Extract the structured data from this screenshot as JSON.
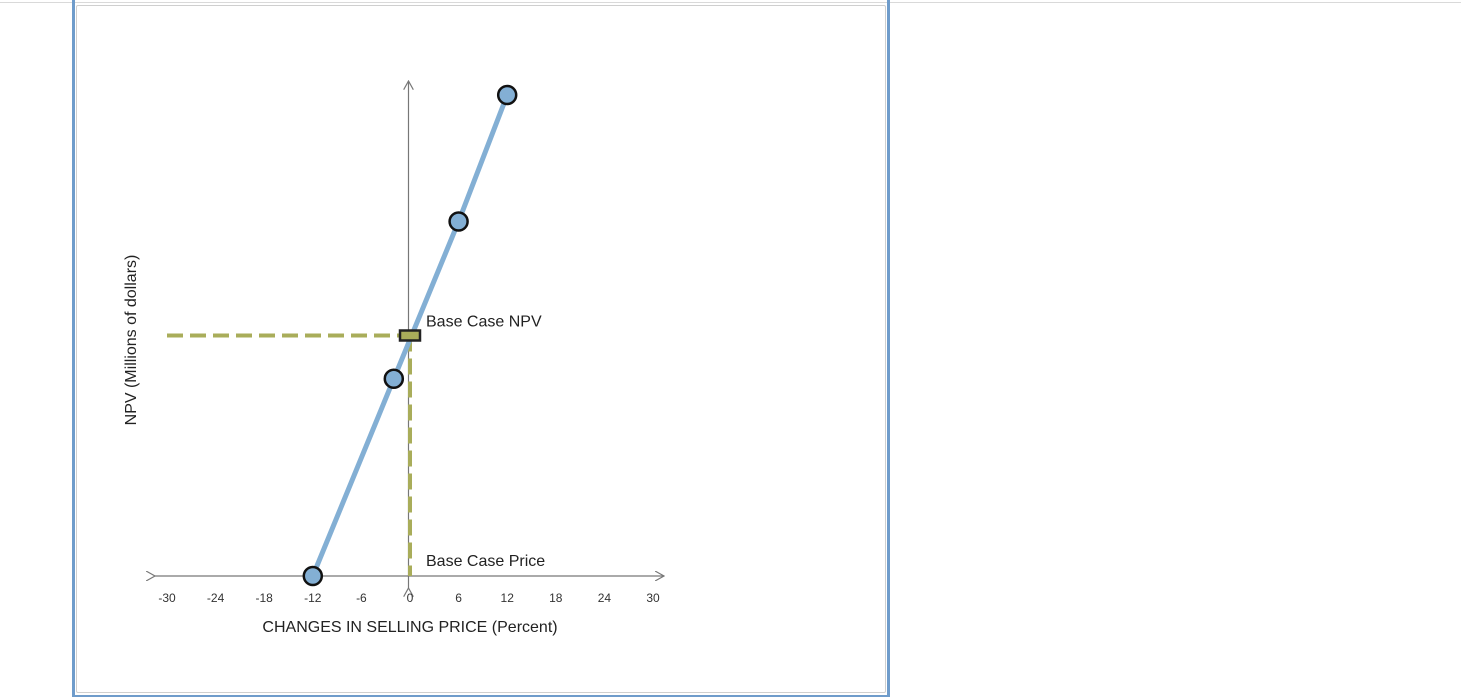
{
  "chart_data": {
    "type": "line",
    "xlabel": "CHANGES IN SELLING PRICE (Percent)",
    "ylabel": "NPV (Millions of dollars)",
    "xlim": [
      -30,
      30
    ],
    "x_ticks": [
      -30,
      -24,
      -18,
      -12,
      -6,
      0,
      6,
      12,
      18,
      24,
      30
    ],
    "y_range": [
      0,
      1
    ],
    "grid": false,
    "series": [
      {
        "points": [
          {
            "x": -12,
            "y": 0.0
          },
          {
            "x": -2,
            "y": 0.41
          },
          {
            "x": 6,
            "y": 0.737
          },
          {
            "x": 12,
            "y": 1.0
          }
        ],
        "color": "#83afd4"
      }
    ],
    "base_case": {
      "x": 0,
      "y": 0.5,
      "npv_label": "Base Case NPV",
      "price_label": "Base Case Price",
      "color": "#a9ad5a"
    }
  }
}
